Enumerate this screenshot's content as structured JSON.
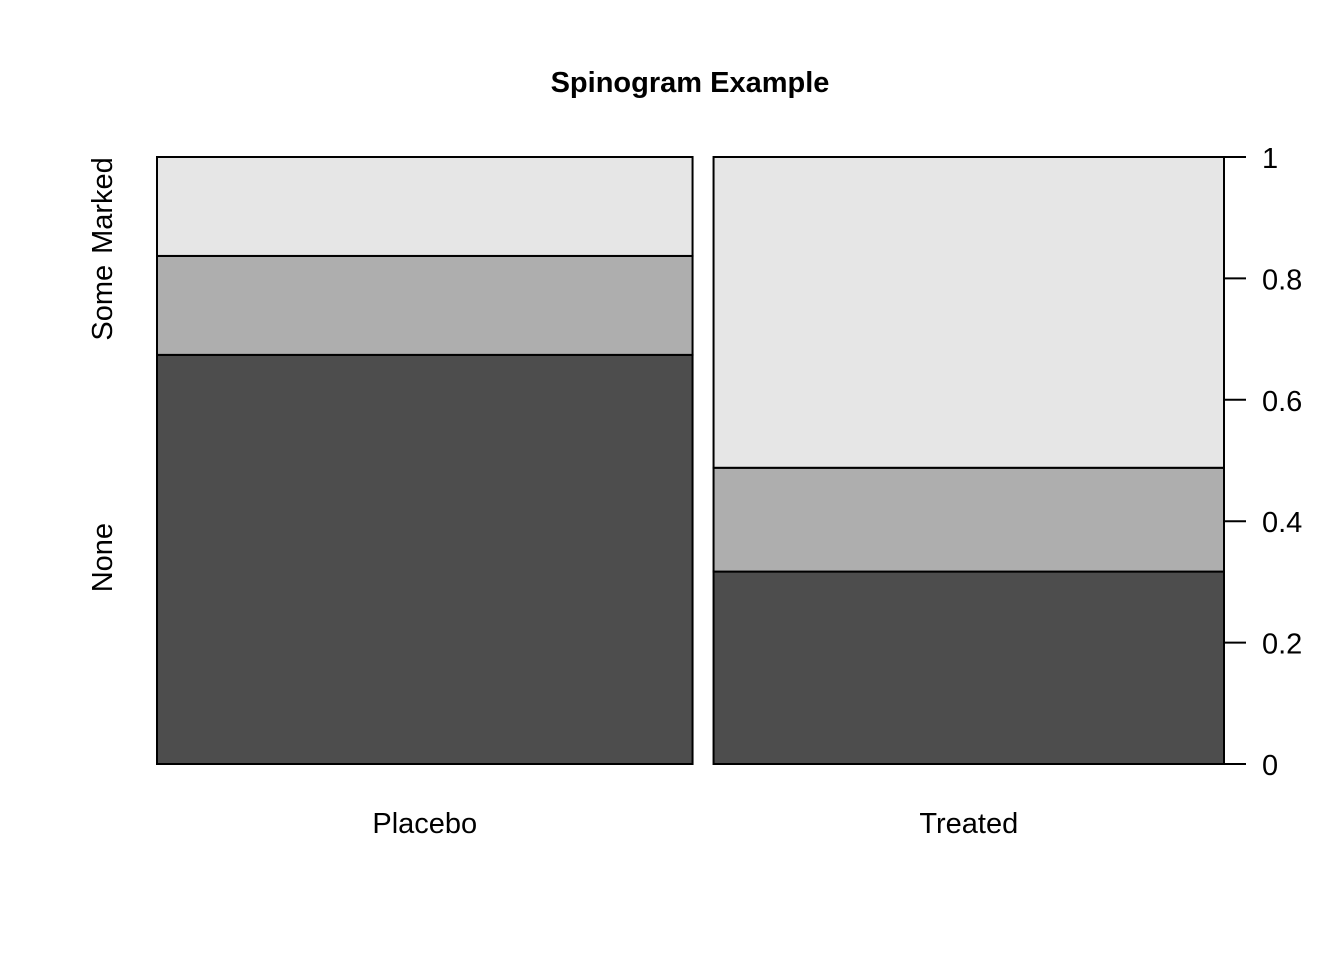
{
  "chart_data": {
    "type": "spinogram",
    "title": "Spinogram Example",
    "xlabel": "",
    "ylabel": "",
    "categories": [
      "Placebo",
      "Treated"
    ],
    "category_widths": [
      0.512,
      0.488
    ],
    "stack_levels": [
      "None",
      "Some",
      "Marked"
    ],
    "stack_colors": [
      "#4d4d4d",
      "#aeaeae",
      "#e6e6e6"
    ],
    "stack_label_positions": [
      0.34,
      0.76,
      0.92
    ],
    "proportions": [
      {
        "category": "Placebo",
        "None": 0.674,
        "Some": 0.163,
        "Marked": 0.163
      },
      {
        "category": "Treated",
        "None": 0.317,
        "Some": 0.171,
        "Marked": 0.512
      }
    ],
    "right_axis": {
      "ticks": [
        0,
        0.2,
        0.4,
        0.6,
        0.8,
        1
      ],
      "tick_labels": [
        "0",
        "0.2",
        "0.4",
        "0.6",
        "0.8",
        "1"
      ],
      "ylim": [
        0,
        1
      ]
    }
  }
}
